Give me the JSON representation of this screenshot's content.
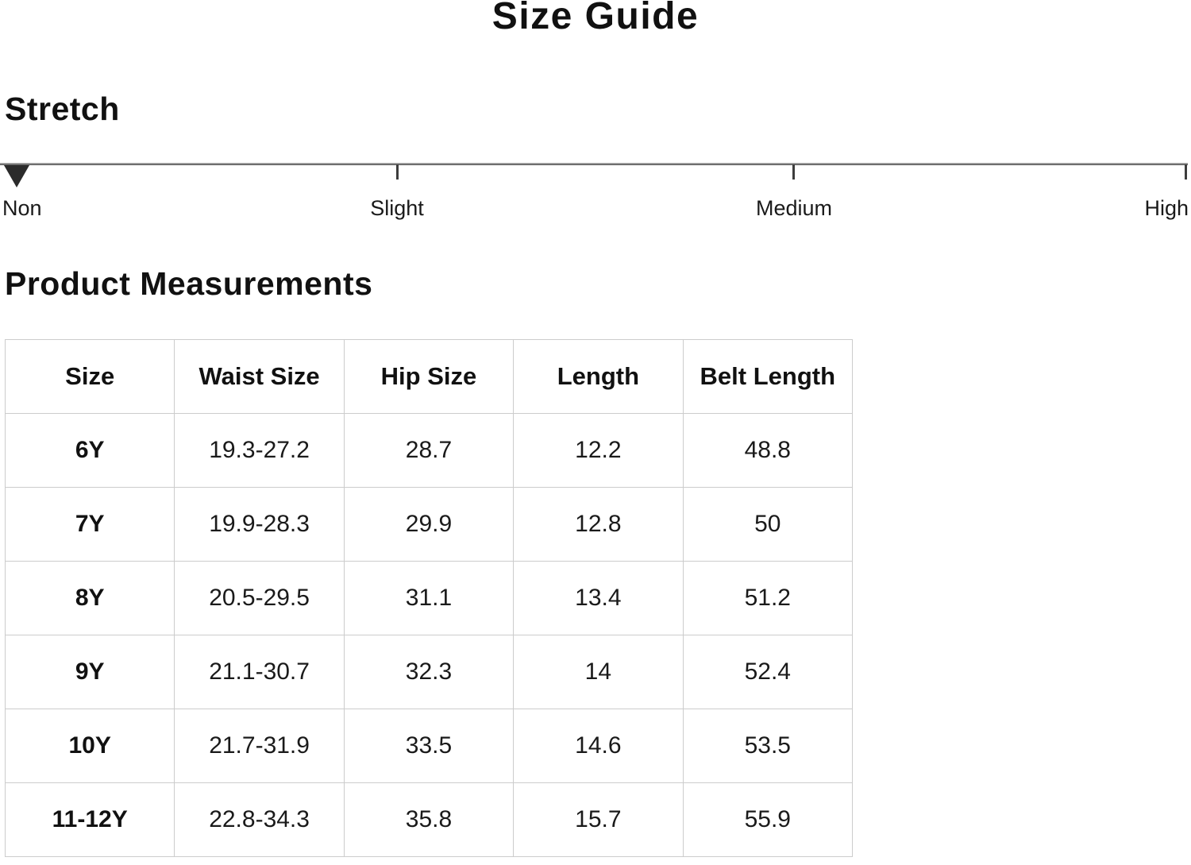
{
  "page": {
    "title": "Size Guide"
  },
  "stretch": {
    "heading": "Stretch",
    "selected_level": "Non",
    "levels": [
      {
        "label": "Non"
      },
      {
        "label": "Slight"
      },
      {
        "label": "Medium"
      },
      {
        "label": "High"
      }
    ]
  },
  "product_measurements": {
    "heading": "Product Measurements",
    "table": {
      "columns": [
        "Size",
        "Waist Size",
        "Hip Size",
        "Length",
        "Belt Length"
      ],
      "rows": [
        [
          "6Y",
          "19.3-27.2",
          "28.7",
          "12.2",
          "48.8"
        ],
        [
          "7Y",
          "19.9-28.3",
          "29.9",
          "12.8",
          "50"
        ],
        [
          "8Y",
          "20.5-29.5",
          "31.1",
          "13.4",
          "51.2"
        ],
        [
          "9Y",
          "21.1-30.7",
          "32.3",
          "14",
          "52.4"
        ],
        [
          "10Y",
          "21.7-31.9",
          "33.5",
          "14.6",
          "53.5"
        ],
        [
          "11-12Y",
          "22.8-34.3",
          "35.8",
          "15.7",
          "55.9"
        ]
      ]
    }
  },
  "colors": {
    "text": "#1a1a1a",
    "table_border": "#cccccc",
    "slider_track": "#808080",
    "slider_marker": "#2b2b2b",
    "background": "#ffffff"
  }
}
